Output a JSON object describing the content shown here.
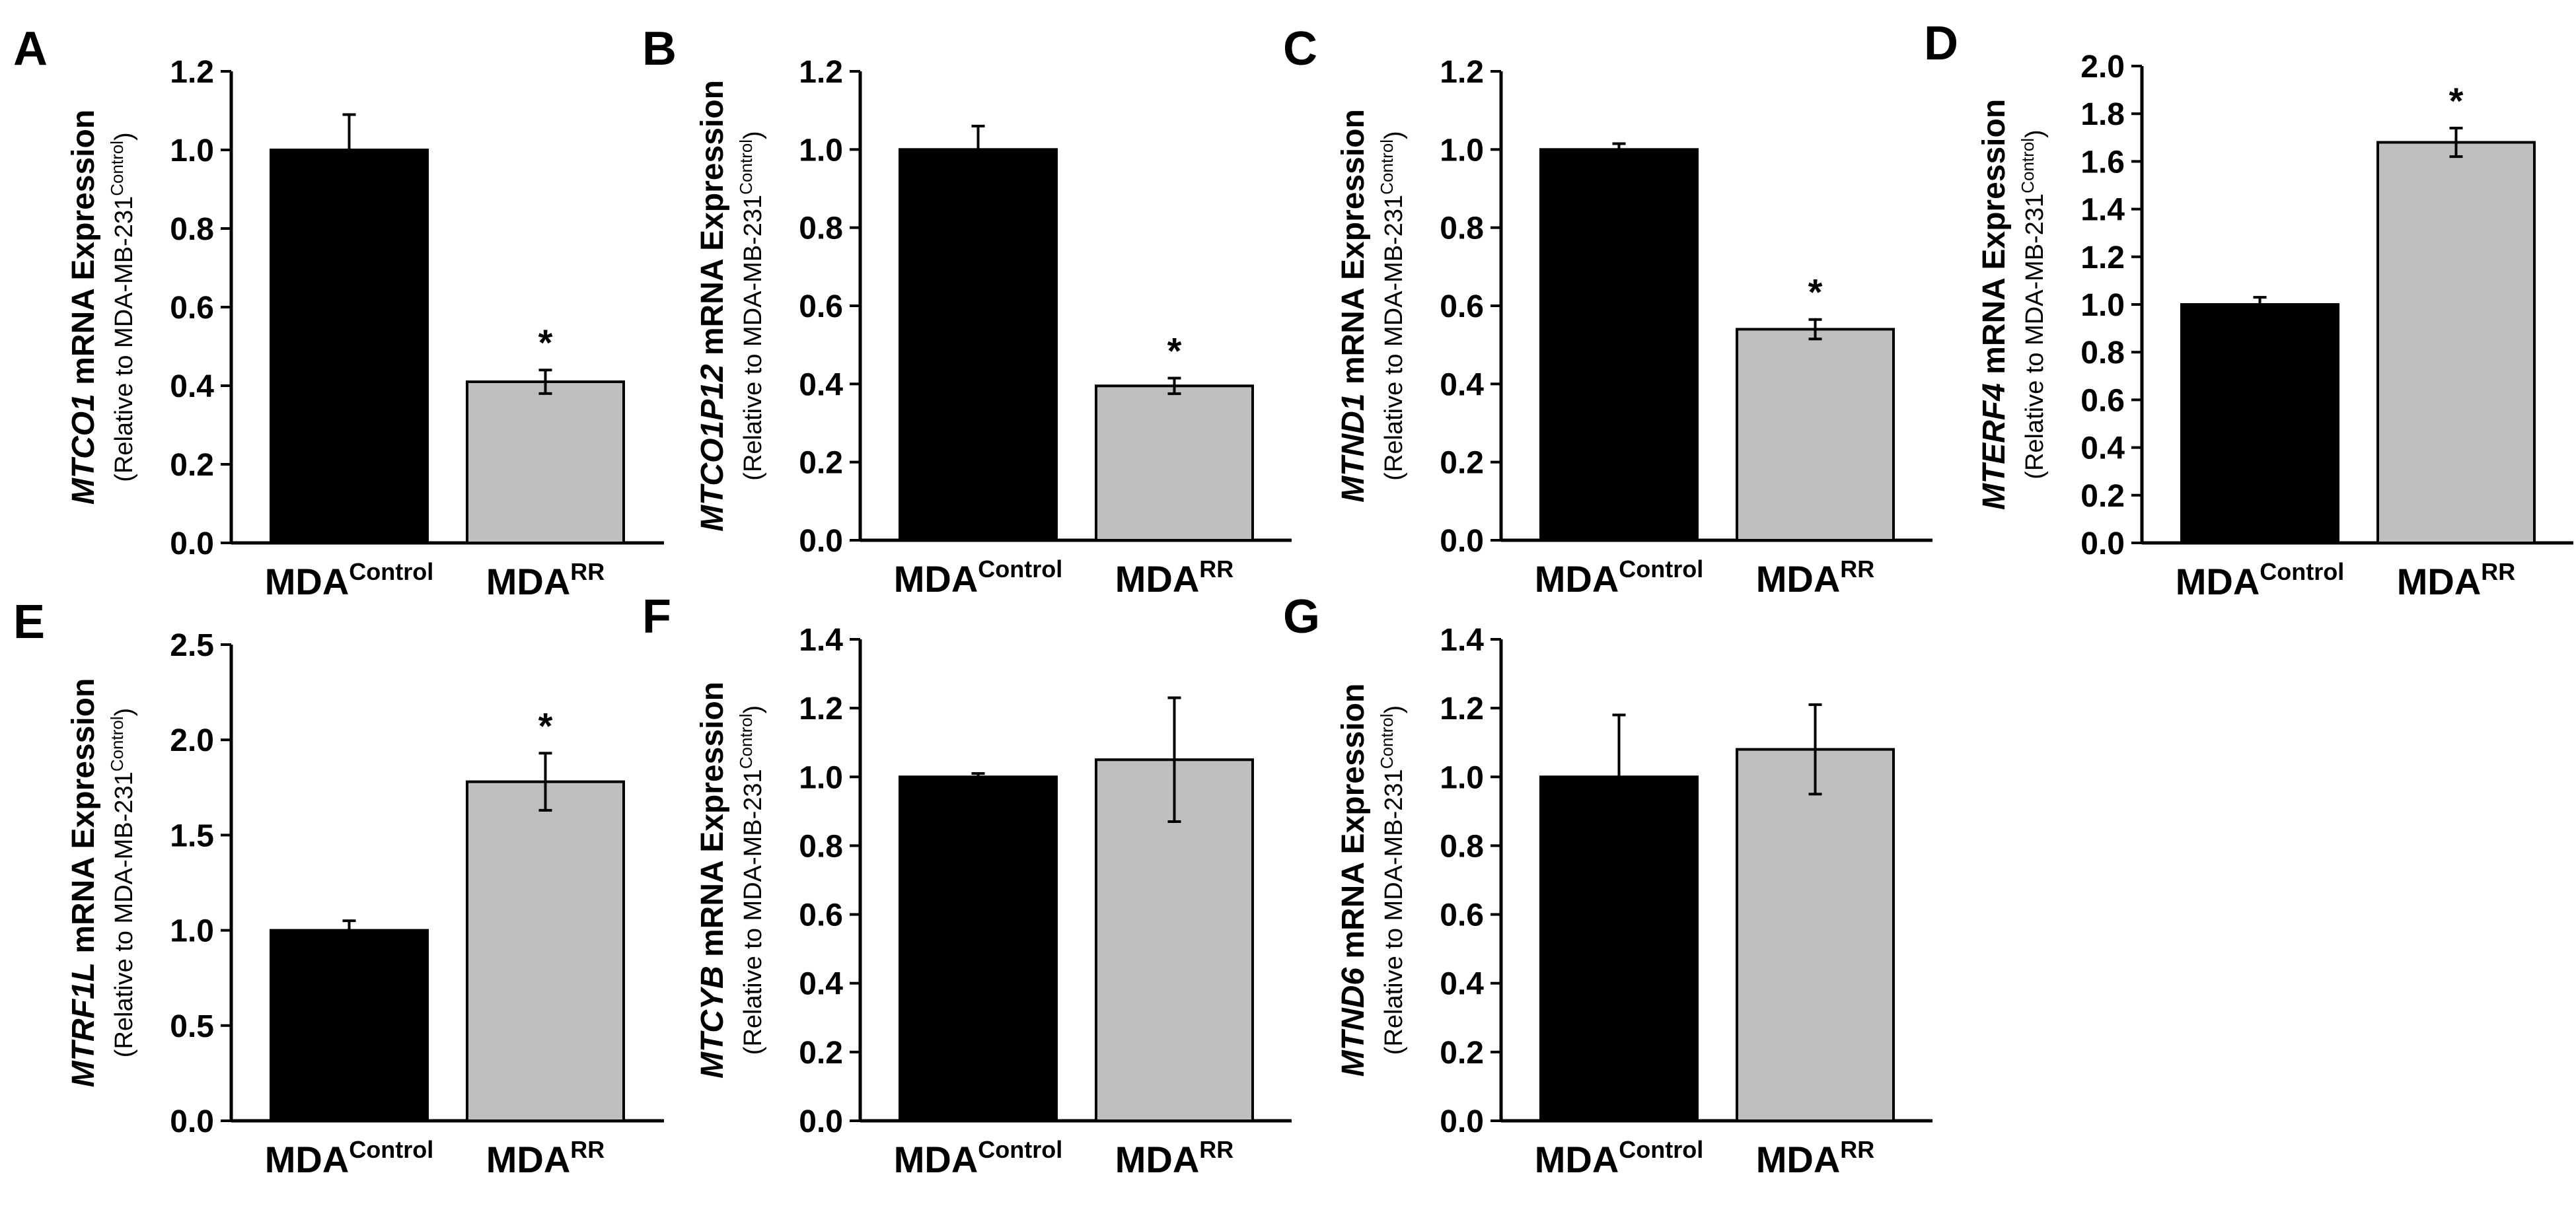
{
  "figure": {
    "axis_label_suffix": " mRNA Expression",
    "axis_sublabel_prefix": "(Relative to MDA-MB-231",
    "axis_sublabel_sup": "Control",
    "axis_sublabel_suffix": ")",
    "category_base": "MDA",
    "bar_colors": [
      "#000000",
      "#bfbfbf"
    ]
  },
  "chart_data": [
    {
      "type": "bar",
      "panel_letter": "A",
      "gene": "MTCO1",
      "categories": [
        {
          "base": "MDA",
          "sup": "Control"
        },
        {
          "base": "MDA",
          "sup": "RR"
        }
      ],
      "values": [
        1.0,
        0.41
      ],
      "errors": [
        0.09,
        0.03
      ],
      "significance": [
        "",
        "*"
      ],
      "yticks": [
        "0.0",
        "0.2",
        "0.4",
        "0.6",
        "0.8",
        "1.0",
        "1.2"
      ],
      "ylim": [
        0,
        1.2
      ]
    },
    {
      "type": "bar",
      "panel_letter": "B",
      "gene": "MTCO1P12",
      "categories": [
        {
          "base": "MDA",
          "sup": "Control"
        },
        {
          "base": "MDA",
          "sup": "RR"
        }
      ],
      "values": [
        1.0,
        0.395
      ],
      "errors": [
        0.06,
        0.02
      ],
      "significance": [
        "",
        "*"
      ],
      "yticks": [
        "0.0",
        "0.2",
        "0.4",
        "0.6",
        "0.8",
        "1.0",
        "1.2"
      ],
      "ylim": [
        0,
        1.2
      ]
    },
    {
      "type": "bar",
      "panel_letter": "C",
      "gene": "MTND1",
      "categories": [
        {
          "base": "MDA",
          "sup": "Control"
        },
        {
          "base": "MDA",
          "sup": "RR"
        }
      ],
      "values": [
        1.0,
        0.54
      ],
      "errors": [
        0.015,
        0.025
      ],
      "significance": [
        "",
        "*"
      ],
      "yticks": [
        "0.0",
        "0.2",
        "0.4",
        "0.6",
        "0.8",
        "1.0",
        "1.2"
      ],
      "ylim": [
        0,
        1.2
      ]
    },
    {
      "type": "bar",
      "panel_letter": "D",
      "gene": "MTERF4",
      "categories": [
        {
          "base": "MDA",
          "sup": "Control"
        },
        {
          "base": "MDA",
          "sup": "RR"
        }
      ],
      "values": [
        1.0,
        1.68
      ],
      "errors": [
        0.03,
        0.06
      ],
      "significance": [
        "",
        "*"
      ],
      "yticks": [
        "0.0",
        "0.2",
        "0.4",
        "0.6",
        "0.8",
        "1.0",
        "1.2",
        "1.4",
        "1.6",
        "1.8",
        "2.0"
      ],
      "ylim": [
        0,
        2.0
      ]
    },
    {
      "type": "bar",
      "panel_letter": "E",
      "gene": "MTRF1L",
      "categories": [
        {
          "base": "MDA",
          "sup": "Control"
        },
        {
          "base": "MDA",
          "sup": "RR"
        }
      ],
      "values": [
        1.0,
        1.78
      ],
      "errors": [
        0.05,
        0.15
      ],
      "significance": [
        "",
        "*"
      ],
      "yticks": [
        "0.0",
        "0.5",
        "1.0",
        "1.5",
        "2.0",
        "2.5"
      ],
      "ylim": [
        0,
        2.5
      ]
    },
    {
      "type": "bar",
      "panel_letter": "F",
      "gene": "MTCYB",
      "categories": [
        {
          "base": "MDA",
          "sup": "Control"
        },
        {
          "base": "MDA",
          "sup": "RR"
        }
      ],
      "values": [
        1.0,
        1.05
      ],
      "errors": [
        0.01,
        0.18
      ],
      "significance": [
        "",
        ""
      ],
      "yticks": [
        "0.0",
        "0.2",
        "0.4",
        "0.6",
        "0.8",
        "1.0",
        "1.2",
        "1.4"
      ],
      "ylim": [
        0,
        1.4
      ]
    },
    {
      "type": "bar",
      "panel_letter": "G",
      "gene": "MTND6",
      "categories": [
        {
          "base": "MDA",
          "sup": "Control"
        },
        {
          "base": "MDA",
          "sup": "RR"
        }
      ],
      "values": [
        1.0,
        1.08
      ],
      "errors": [
        0.18,
        0.13
      ],
      "significance": [
        "",
        ""
      ],
      "yticks": [
        "0.0",
        "0.2",
        "0.4",
        "0.6",
        "0.8",
        "1.0",
        "1.2",
        "1.4"
      ],
      "ylim": [
        0,
        1.4
      ]
    }
  ]
}
